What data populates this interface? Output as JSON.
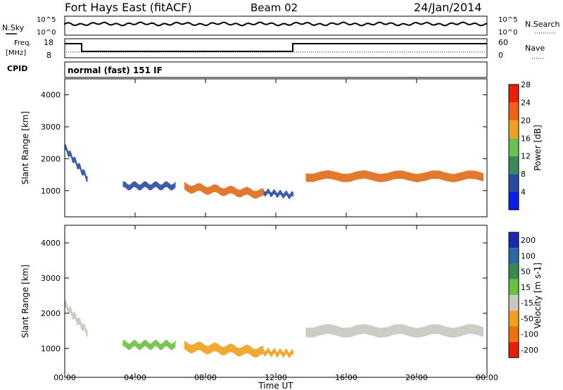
{
  "header": {
    "title": "Fort Hays East (fitACF)",
    "beam": "Beam 02",
    "date": "24/Jan/2014"
  },
  "panels": {
    "nsky_label": "N.Sky",
    "nsky_ticks": [
      "10^5",
      "10^0"
    ],
    "nsearch_label": "N.Search",
    "nsearch_ticks": [
      "10^5",
      "10^0"
    ],
    "freq_label_1": "Freq.",
    "freq_label_2": "[MHz]",
    "freq_ticks": [
      "18",
      "8"
    ],
    "nave_label": "Nave",
    "nave_ticks": [
      "60",
      "0"
    ],
    "cpid_label": "CPID",
    "mode_text": "normal (fast) 151 IF"
  },
  "chart_data": [
    {
      "type": "heatmap",
      "name": "power",
      "ylabel": "Slant Range [km]",
      "xlabel": "",
      "ylim": [
        180,
        4500
      ],
      "xlim": [
        0,
        24
      ],
      "y_ticks": [
        "1000",
        "2000",
        "3000",
        "4000"
      ],
      "y_tick_values": [
        1000,
        2000,
        3000,
        4000
      ],
      "colorbar_label": "Power [dB]",
      "colorbar_ticks": [
        "4",
        "8",
        "12",
        "16",
        "20",
        "24",
        "28"
      ],
      "colorbar_colors": [
        "#0a1ee6",
        "#2a4aa0",
        "#3a8a5a",
        "#6ac050",
        "#f0a020",
        "#f06018",
        "#e61e0a"
      ],
      "echo_bands": [
        {
          "t_start": 0.0,
          "t_end": 1.3,
          "range_start": 2350,
          "range_end": 1380,
          "width": 180,
          "color": "#2a4aa0"
        },
        {
          "t_start": 3.3,
          "t_end": 6.3,
          "range_start": 1150,
          "range_end": 1150,
          "width": 180,
          "color": "#2a4aa0"
        },
        {
          "t_start": 6.8,
          "t_end": 11.3,
          "range_start": 1100,
          "range_end": 900,
          "width": 240,
          "color": "#e06a18"
        },
        {
          "t_start": 11.3,
          "t_end": 13.0,
          "range_start": 950,
          "range_end": 850,
          "width": 150,
          "color": "#2a4aa0"
        },
        {
          "t_start": 13.7,
          "t_end": 23.8,
          "range_start": 1450,
          "range_end": 1450,
          "width": 260,
          "color": "#e06a18"
        }
      ]
    },
    {
      "type": "heatmap",
      "name": "velocity",
      "ylabel": "Slant Range [km]",
      "xlabel": "Time UT",
      "ylim": [
        180,
        4500
      ],
      "xlim": [
        0,
        24
      ],
      "x_ticks": [
        "00:00",
        "04:00",
        "08:00",
        "12:00",
        "16:00",
        "20:00",
        "00:00"
      ],
      "x_tick_values": [
        0,
        4,
        8,
        12,
        16,
        20,
        24
      ],
      "y_ticks": [
        "1000",
        "2000",
        "3000",
        "4000"
      ],
      "y_tick_values": [
        1000,
        2000,
        3000,
        4000
      ],
      "colorbar_label": "Velocity [m s-1]",
      "colorbar_ticks": [
        "200",
        "100",
        "50",
        "15",
        "-15",
        "-50",
        "-100",
        "-200"
      ],
      "colorbar_colors": [
        "#1a2ab0",
        "#2a6aa0",
        "#3a8a50",
        "#6ac040",
        "#c8c8c0",
        "#f0a020",
        "#f07010",
        "#e61e0a"
      ],
      "echo_bands": [
        {
          "t_start": 0.0,
          "t_end": 1.3,
          "range_start": 2250,
          "range_end": 1450,
          "width": 200,
          "color": "#c8c8c0"
        },
        {
          "t_start": 3.3,
          "t_end": 6.3,
          "range_start": 1100,
          "range_end": 1100,
          "width": 180,
          "color": "#6ac040"
        },
        {
          "t_start": 6.8,
          "t_end": 11.3,
          "range_start": 1050,
          "range_end": 900,
          "width": 240,
          "color": "#f0a020"
        },
        {
          "t_start": 11.3,
          "t_end": 13.0,
          "range_start": 900,
          "range_end": 850,
          "width": 150,
          "color": "#f0a020"
        },
        {
          "t_start": 13.7,
          "t_end": 23.8,
          "range_start": 1500,
          "range_end": 1500,
          "width": 280,
          "color": "#c8c8c0"
        }
      ]
    }
  ]
}
